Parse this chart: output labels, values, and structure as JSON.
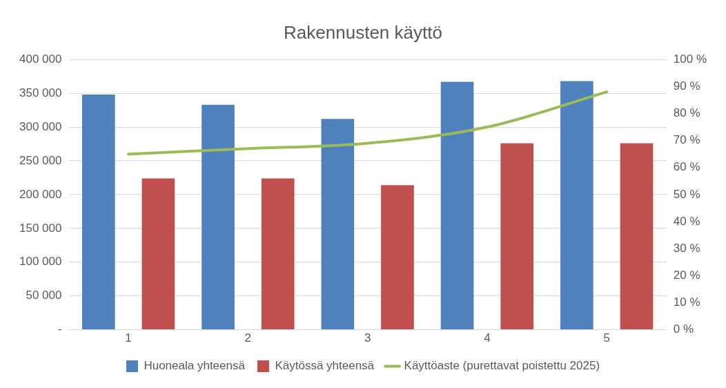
{
  "chart_data": {
    "type": "bar",
    "title": "Rakennusten käyttö",
    "categories": [
      "1",
      "2",
      "3",
      "4",
      "5"
    ],
    "series": [
      {
        "name": "Huoneala yhteensä",
        "color": "#4f81bd",
        "values": [
          348000,
          333000,
          312000,
          367000,
          368000
        ]
      },
      {
        "name": "Käytössä yhteensä",
        "color": "#c0504d",
        "values": [
          224000,
          224000,
          214000,
          276000,
          276000
        ]
      },
      {
        "name": "Käyttöaste (purettavat poistettu 2025)",
        "color": "#9bbb59",
        "type": "line",
        "axis": "y2",
        "marker": "none",
        "values": [
          65,
          67,
          69,
          75,
          88
        ]
      }
    ],
    "ylim": [
      0,
      400000
    ],
    "yticks": [
      {
        "value": 0,
        "label": "-"
      },
      {
        "value": 50000,
        "label": "50 000"
      },
      {
        "value": 100000,
        "label": "100 000"
      },
      {
        "value": 150000,
        "label": "150 000"
      },
      {
        "value": 200000,
        "label": "200 000"
      },
      {
        "value": 250000,
        "label": "250 000"
      },
      {
        "value": 300000,
        "label": "300 000"
      },
      {
        "value": 350000,
        "label": "350 000"
      },
      {
        "value": 400000,
        "label": "400 000"
      }
    ],
    "y2lim": [
      0,
      100
    ],
    "y2ticks": [
      {
        "value": 0,
        "label": "0 %"
      },
      {
        "value": 10,
        "label": "10 %"
      },
      {
        "value": 20,
        "label": "20 %"
      },
      {
        "value": 30,
        "label": "30 %"
      },
      {
        "value": 40,
        "label": "40 %"
      },
      {
        "value": 50,
        "label": "50 %"
      },
      {
        "value": 60,
        "label": "60 %"
      },
      {
        "value": 70,
        "label": "70 %"
      },
      {
        "value": 80,
        "label": "80 %"
      },
      {
        "value": 90,
        "label": "90 %"
      },
      {
        "value": 100,
        "label": "100 %"
      }
    ],
    "grid": "y",
    "legend": "bottom"
  }
}
